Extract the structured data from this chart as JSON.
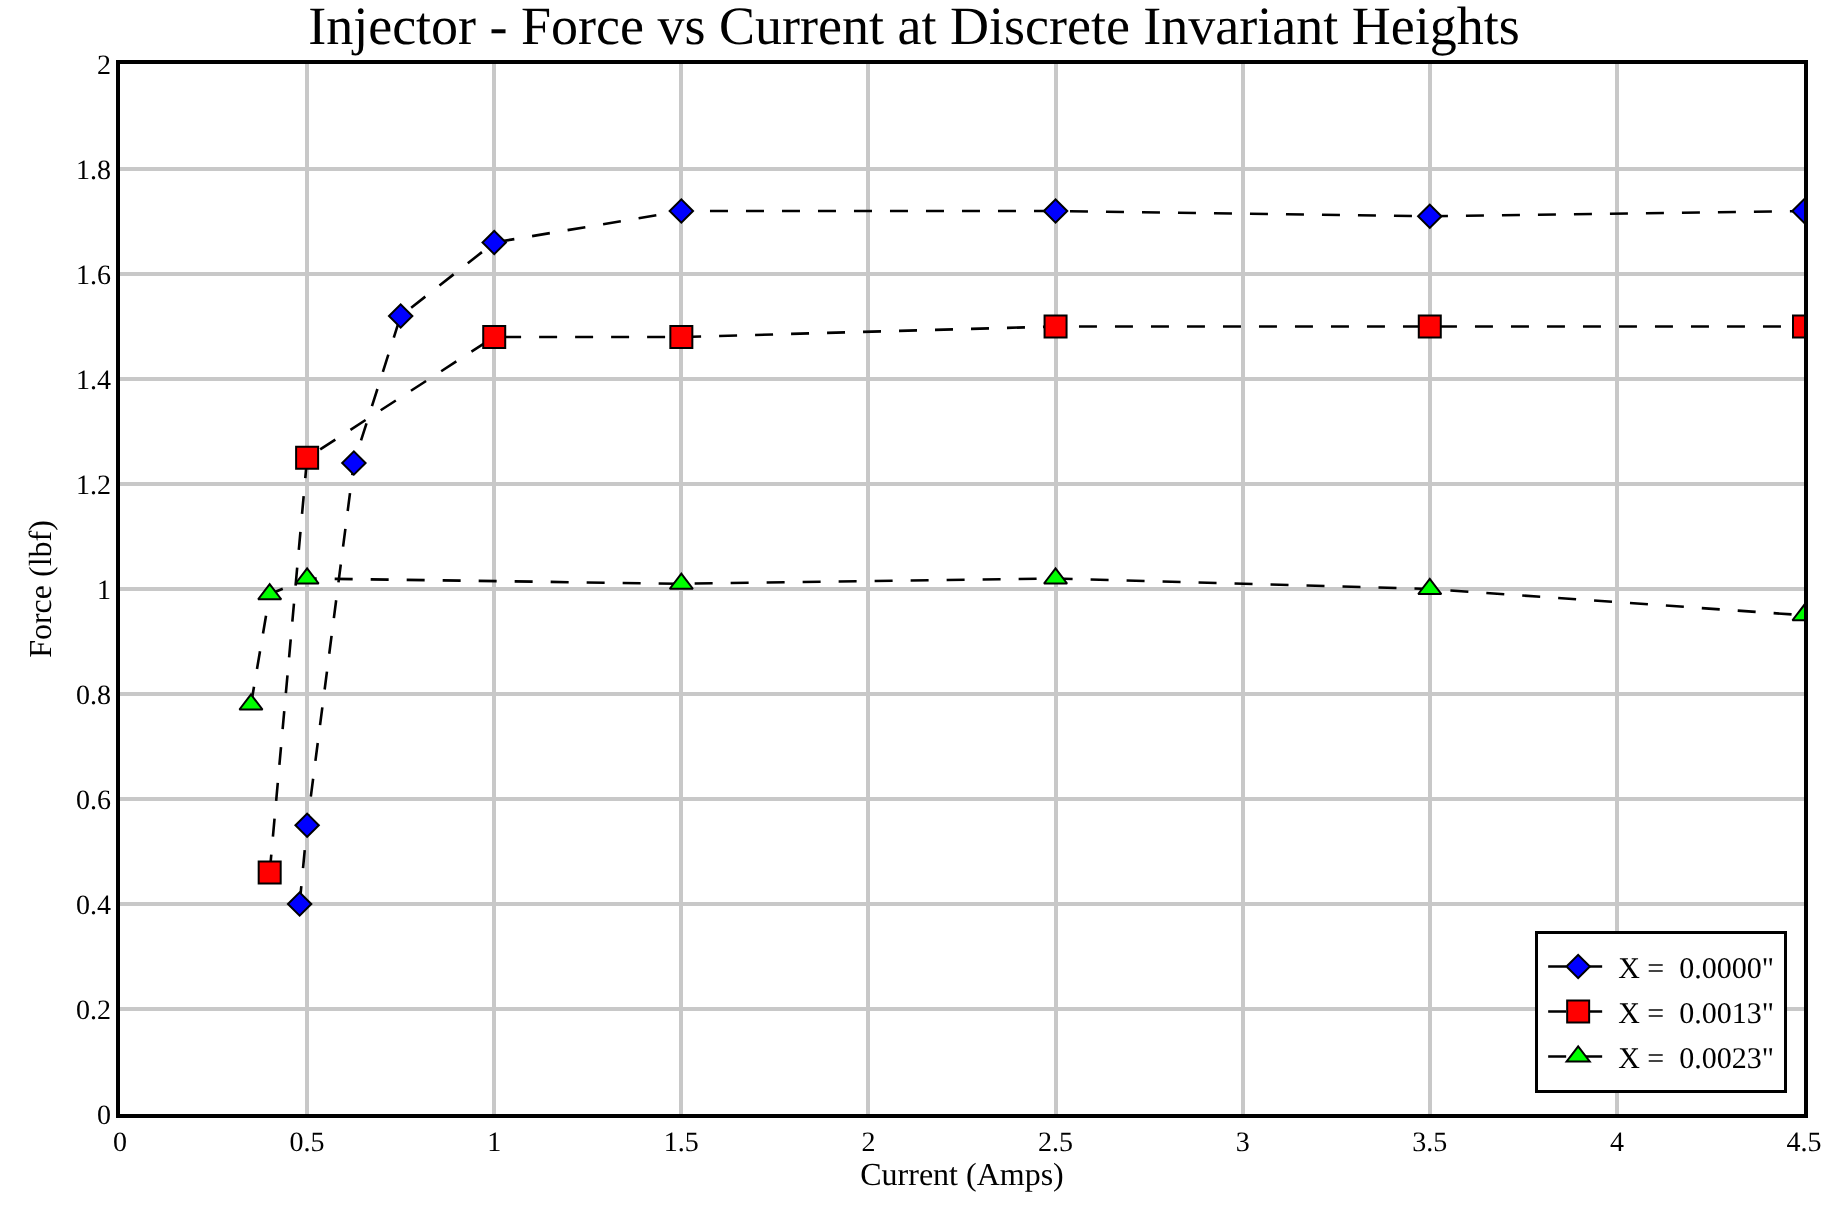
{
  "chart_data": {
    "type": "line",
    "title": "Injector - Force vs Current at Discrete Invariant Heights",
    "xlabel": "Current (Amps)",
    "ylabel": "Force (lbf)",
    "xlim": [
      0,
      4.5
    ],
    "xticks": [
      0,
      0.5,
      1,
      1.5,
      2,
      2.5,
      3,
      3.5,
      4,
      4.5
    ],
    "ylim": [
      0,
      2
    ],
    "yticks": [
      0,
      0.2,
      0.4,
      0.6,
      0.8,
      1,
      1.2,
      1.4,
      1.6,
      1.8,
      2
    ],
    "grid": true,
    "legend": "bottom right",
    "line_style": "dashed",
    "series": [
      {
        "name": "X =  0.0000\"",
        "color": "#0000ff",
        "marker": "diamond",
        "x": [
          0.48,
          0.5,
          0.625,
          0.75,
          1,
          1.5,
          2.5,
          3.5,
          4.5
        ],
        "values": [
          0.4,
          0.55,
          1.24,
          1.52,
          1.66,
          1.72,
          1.72,
          1.71,
          1.72
        ]
      },
      {
        "name": "X =  0.0013\"",
        "color": "#ff0000",
        "marker": "square",
        "x": [
          0.4,
          0.5,
          1,
          1.5,
          2.5,
          3.5,
          4.5
        ],
        "values": [
          0.46,
          1.25,
          1.48,
          1.48,
          1.5,
          1.5,
          1.5
        ]
      },
      {
        "name": "X =  0.0023\"",
        "color": "#00ff00",
        "marker": "triangle",
        "x": [
          0.35,
          0.4,
          0.5,
          1.5,
          2.5,
          3.5,
          4.5
        ],
        "values": [
          0.78,
          0.99,
          1.02,
          1.01,
          1.02,
          1.0,
          0.95
        ]
      }
    ]
  }
}
